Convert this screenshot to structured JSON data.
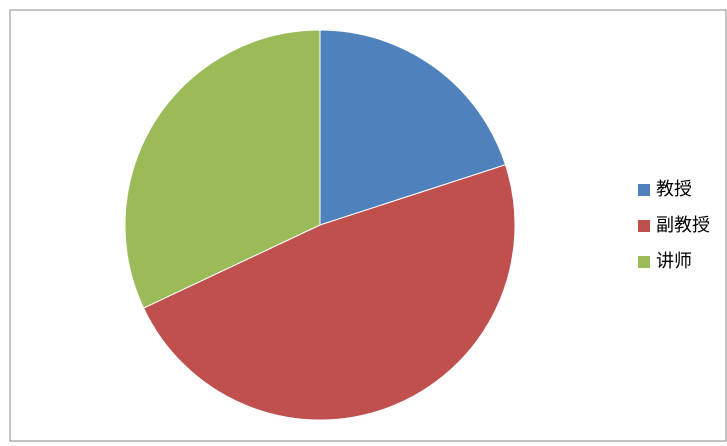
{
  "chart_data": {
    "type": "pie",
    "categories": [
      "教授",
      "副教授",
      "讲师"
    ],
    "values": [
      20,
      48,
      32
    ],
    "colors": [
      "#4f81bd",
      "#c0504d",
      "#9bbb59"
    ],
    "legend": "right"
  }
}
